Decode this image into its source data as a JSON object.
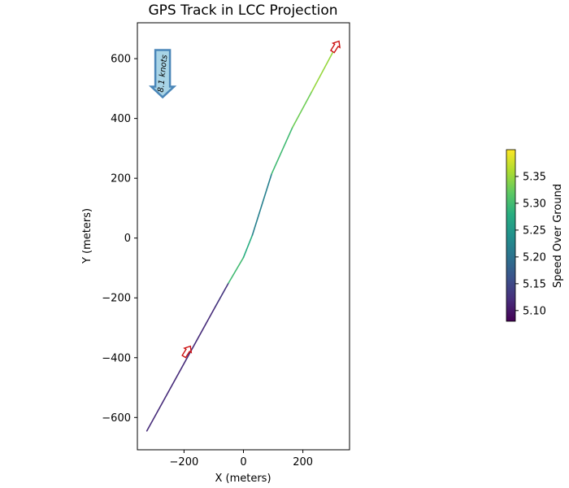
{
  "chart_data": {
    "type": "line",
    "title": "GPS Track in LCC Projection",
    "xlabel": "X (meters)",
    "ylabel": "Y (meters)",
    "xlim": [
      -357,
      357
    ],
    "ylim": [
      -708,
      720
    ],
    "xticks": [
      -200,
      0,
      200
    ],
    "yticks": [
      -600,
      -400,
      -200,
      0,
      200,
      400,
      600
    ],
    "grid": false,
    "colormap": "viridis",
    "colorbar": {
      "label": "Speed Over Ground",
      "range": [
        5.08,
        5.4
      ],
      "ticks": [
        5.1,
        5.15,
        5.2,
        5.25,
        5.3,
        5.35
      ]
    },
    "track": {
      "x": [
        -325,
        -95,
        -50,
        0,
        30,
        95,
        165,
        230,
        300
      ],
      "y": [
        -645,
        -230,
        -150,
        -65,
        10,
        215,
        370,
        490,
        620
      ],
      "speed": [
        5.12,
        5.13,
        5.3,
        5.28,
        5.22,
        5.3,
        5.33,
        5.35,
        5.36
      ]
    },
    "direction_arrows": [
      {
        "x": -190,
        "y": -380,
        "color": "#cc1111"
      },
      {
        "x": 310,
        "y": 640,
        "color": "#cc1111"
      }
    ],
    "annotation": {
      "text": "8.1 knots",
      "x": -272,
      "y": 550,
      "fill": "#a8d4e6",
      "edge": "#4a86b8"
    }
  }
}
